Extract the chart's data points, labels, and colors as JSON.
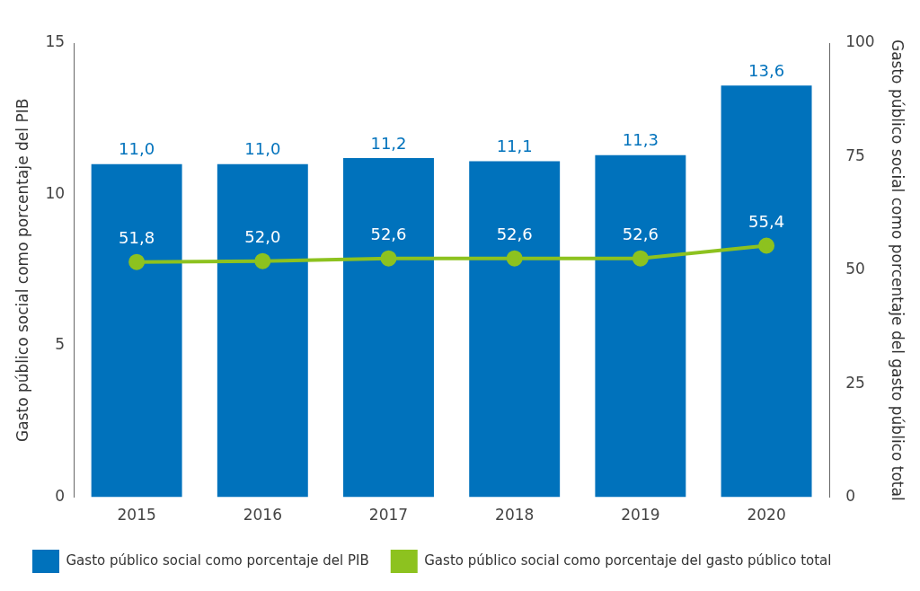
{
  "chart_data": {
    "type": "bar",
    "categories": [
      "2015",
      "2016",
      "2017",
      "2018",
      "2019",
      "2020"
    ],
    "series": [
      {
        "name": "Gasto público social como porcentaje del PIB",
        "color": "#0072bc",
        "values": [
          11.0,
          11.0,
          11.2,
          11.1,
          11.3,
          13.6
        ],
        "value_labels": [
          "11,0",
          "11,0",
          "11,2",
          "11,1",
          "11,3",
          "13,6"
        ]
      },
      {
        "name": "Gasto público social como porcentaje del gasto público total",
        "type": "line",
        "axis": "y2",
        "color": "#8dc21f",
        "values": [
          51.8,
          52.0,
          52.6,
          52.6,
          52.6,
          55.4
        ],
        "value_labels": [
          "51,8",
          "52,0",
          "52,6",
          "52,6",
          "52,6",
          "55,4"
        ]
      }
    ],
    "ylabel": "Gasto público social como porcentaje del PIB",
    "y2label": "Gasto público social como porcentaje del gasto público total",
    "ylim": [
      0,
      15
    ],
    "yticks": [
      0,
      5,
      10,
      15
    ],
    "y2lim": [
      0,
      100
    ],
    "y2ticks": [
      0,
      25,
      50,
      75,
      100
    ],
    "grid": false,
    "legend": "bottom",
    "marker": "circle",
    "line_style": "solid"
  }
}
